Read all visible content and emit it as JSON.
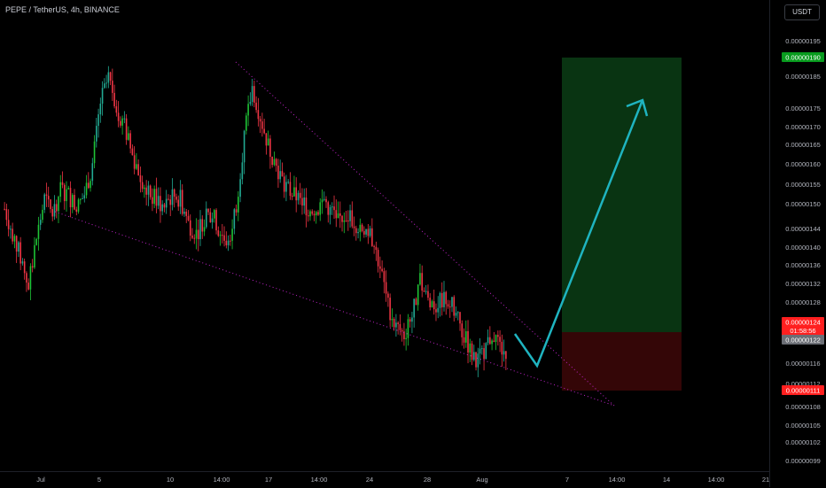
{
  "header": {
    "title": "PEPE / TetherUS, 4h, BINANCE",
    "currency_button": "USDT"
  },
  "colors": {
    "background": "#000000",
    "up_candle": "#22ab94",
    "up_candle_alt": "#1fc436",
    "down_candle": "#f23645",
    "trendline": "#c024c9",
    "arrow": "#1fb4c0",
    "profit_zone": "#0a3a14",
    "loss_zone": "#3a0708",
    "target_label": "#089b1e",
    "stop_label": "#ff1f1f",
    "price_label": "#ff1f1f",
    "entry_label": "#6b6e75"
  },
  "chart_data": {
    "type": "line",
    "title": "PEPE / TetherUS, 4h, BINANCE",
    "y_axis_ticks": [
      "0.00000195",
      "0.00000190",
      "0.00000185",
      "0.00000175",
      "0.00000170",
      "0.00000165",
      "0.00000160",
      "0.00000155",
      "0.00000150",
      "0.00000144",
      "0.00000140",
      "0.00000136",
      "0.00000132",
      "0.00000128",
      "0.00000124",
      "0.00000122",
      "0.00000116",
      "0.00000112",
      "0.00000111",
      "0.00000108",
      "0.00000105",
      "0.00000102",
      "0.00000099"
    ],
    "x_axis_ticks": [
      "Jul",
      "5",
      "10",
      "14:00",
      "17",
      "14:00",
      "24",
      "28",
      "Aug",
      "7",
      "14:00",
      "14",
      "14:00",
      "21"
    ],
    "ylim": [
      9.9e-07,
      1.96e-06
    ],
    "series": [
      {
        "values_approx_close": [
          1.53,
          1.48,
          1.43,
          1.37,
          1.47,
          1.55,
          1.52,
          1.57,
          1.56,
          1.53,
          1.56,
          1.62,
          1.75,
          1.8,
          1.74,
          1.7,
          1.64,
          1.6,
          1.56,
          1.55,
          1.53,
          1.56,
          1.55,
          1.5,
          1.48,
          1.51,
          1.52,
          1.48,
          1.46,
          1.54,
          1.68,
          1.78,
          1.72,
          1.66,
          1.62,
          1.58,
          1.56,
          1.55,
          1.53,
          1.53,
          1.55,
          1.52,
          1.51,
          1.52,
          1.5,
          1.49,
          1.47,
          1.41,
          1.33,
          1.29,
          1.27,
          1.31,
          1.38,
          1.34,
          1.33,
          1.35,
          1.33,
          1.29,
          1.25,
          1.21,
          1.24,
          1.27,
          1.24
        ]
      }
    ],
    "annotations": {
      "current_price": "0.00000124",
      "countdown": "01:58:56",
      "entry": "0.00000122",
      "target": "0.00000190",
      "stop": "0.00000111",
      "upper_trendline": [
        {
          "date": "Jul 14 14:00",
          "price": 1.9e-06
        },
        {
          "date": "Aug 14:00 (after Aug 7)",
          "price": 1.08e-06
        }
      ],
      "lower_trendline": [
        {
          "date": "Jul 3",
          "price": 1.48e-06
        },
        {
          "date": "Aug 14:00 (after Aug 7)",
          "price": 1.08e-06
        }
      ]
    }
  }
}
